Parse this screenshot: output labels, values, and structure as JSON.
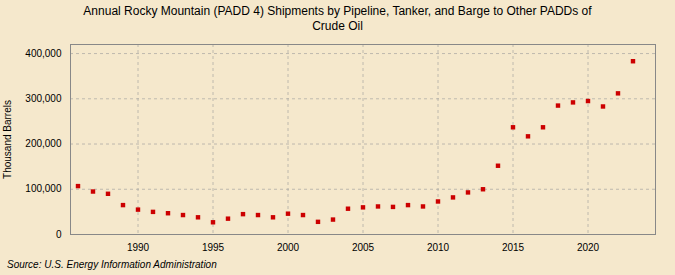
{
  "chart_data": {
    "type": "scatter",
    "title": "Annual Rocky Mountain (PADD 4) Shipments by Pipeline, Tanker, and Barge to Other PADDs of\nCrude Oil",
    "ylabel": "Thousand Barrels",
    "source": "Source:  U.S. Energy Information Administration",
    "x": [
      1986,
      1987,
      1988,
      1989,
      1990,
      1991,
      1992,
      1993,
      1994,
      1995,
      1996,
      1997,
      1998,
      1999,
      2000,
      2001,
      2002,
      2003,
      2004,
      2005,
      2006,
      2007,
      2008,
      2009,
      2010,
      2011,
      2012,
      2013,
      2014,
      2015,
      2016,
      2017,
      2018,
      2019,
      2020,
      2021,
      2022,
      2023
    ],
    "values": [
      107000,
      95000,
      90000,
      65000,
      55000,
      50000,
      47000,
      43000,
      38000,
      27000,
      35000,
      45000,
      43000,
      38000,
      46000,
      43000,
      28000,
      33000,
      57000,
      60000,
      62000,
      61000,
      65000,
      62000,
      73000,
      82000,
      93000,
      100000,
      152000,
      237000,
      217000,
      237000,
      285000,
      292000,
      295000,
      283000,
      312000,
      383000
    ],
    "color": "#cc0000",
    "marker": "square",
    "xlim": [
      1985.5,
      2024.5
    ],
    "xticks": [
      1990,
      1995,
      2000,
      2005,
      2010,
      2015,
      2020
    ],
    "ylim": [
      0,
      420000
    ],
    "yticks": [
      0,
      {
        "value": 100000,
        "label": "100,000"
      },
      {
        "value": 200000,
        "label": "200,000"
      },
      {
        "value": 300000,
        "label": "300,000"
      },
      {
        "value": 400000,
        "label": "400,000"
      }
    ],
    "grid": true
  }
}
